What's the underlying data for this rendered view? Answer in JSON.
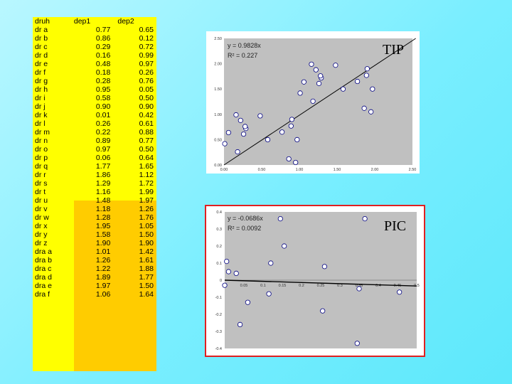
{
  "table": {
    "headers": [
      "druh",
      "dep1",
      "dep2"
    ],
    "rows": [
      [
        "dr a",
        "0.77",
        "0.65"
      ],
      [
        "dr b",
        "0.86",
        "0.12"
      ],
      [
        "dr c",
        "0.29",
        "0.72"
      ],
      [
        "dr d",
        "0.16",
        "0.99"
      ],
      [
        "dr e",
        "0.48",
        "0.97"
      ],
      [
        "dr f",
        "0.18",
        "0.26"
      ],
      [
        "dr g",
        "0.28",
        "0.76"
      ],
      [
        "dr h",
        "0.95",
        "0.05"
      ],
      [
        "dr i",
        "0.58",
        "0.50"
      ],
      [
        "dr j",
        "0.90",
        "0.90"
      ],
      [
        "dr k",
        "0.01",
        "0.42"
      ],
      [
        "dr l",
        "0.26",
        "0.61"
      ],
      [
        "dr m",
        "0.22",
        "0.88"
      ],
      [
        "dr n",
        "0.89",
        "0.77"
      ],
      [
        "dr o",
        "0.97",
        "0.50"
      ],
      [
        "dr p",
        "0.06",
        "0.64"
      ],
      [
        "dr q",
        "1.77",
        "1.65"
      ],
      [
        "dr r",
        "1.86",
        "1.12"
      ],
      [
        "dr s",
        "1.29",
        "1.72"
      ],
      [
        "dr t",
        "1.16",
        "1.99"
      ],
      [
        "dr u",
        "1.48",
        "1.97"
      ],
      [
        "dr v",
        "1.18",
        "1.26"
      ],
      [
        "dr w",
        "1.28",
        "1.76"
      ],
      [
        "dr x",
        "1.95",
        "1.05"
      ],
      [
        "dr y",
        "1.58",
        "1.50"
      ],
      [
        "dr z",
        "1.90",
        "1.90"
      ],
      [
        "dra a",
        "1.01",
        "1.42"
      ],
      [
        "dra b",
        "1.26",
        "1.61"
      ],
      [
        "dra c",
        "1.22",
        "1.88"
      ],
      [
        "dra d",
        "1.89",
        "1.77"
      ],
      [
        "dra e",
        "1.97",
        "1.50"
      ],
      [
        "dra f",
        "1.06",
        "1.64"
      ]
    ],
    "colors": {
      "yellow": "#ffff00",
      "orange": "#ffcc00"
    }
  },
  "chart_data": [
    {
      "type": "scatter",
      "label": "TIP",
      "equation": "y = 0.9828x",
      "r2": "R² = 0.227",
      "xlim": [
        0,
        2.5
      ],
      "ylim": [
        0,
        2.5
      ],
      "x_ticks": [
        "0.00",
        "0.50",
        "1.00",
        "1.50",
        "2.00",
        "2.50"
      ],
      "y_ticks": [
        "0.00",
        "0.50",
        "1.00",
        "1.50",
        "2.00",
        "2.50"
      ],
      "trend_slope": 0.9828,
      "points": [
        [
          0.77,
          0.65
        ],
        [
          0.86,
          0.12
        ],
        [
          0.29,
          0.72
        ],
        [
          0.16,
          0.99
        ],
        [
          0.48,
          0.97
        ],
        [
          0.18,
          0.26
        ],
        [
          0.28,
          0.76
        ],
        [
          0.95,
          0.05
        ],
        [
          0.58,
          0.5
        ],
        [
          0.9,
          0.9
        ],
        [
          0.01,
          0.42
        ],
        [
          0.26,
          0.61
        ],
        [
          0.22,
          0.88
        ],
        [
          0.89,
          0.77
        ],
        [
          0.97,
          0.5
        ],
        [
          0.06,
          0.64
        ],
        [
          1.77,
          1.65
        ],
        [
          1.86,
          1.12
        ],
        [
          1.29,
          1.72
        ],
        [
          1.16,
          1.99
        ],
        [
          1.48,
          1.97
        ],
        [
          1.18,
          1.26
        ],
        [
          1.28,
          1.76
        ],
        [
          1.95,
          1.05
        ],
        [
          1.58,
          1.5
        ],
        [
          1.9,
          1.9
        ],
        [
          1.01,
          1.42
        ],
        [
          1.26,
          1.61
        ],
        [
          1.22,
          1.88
        ],
        [
          1.89,
          1.77
        ],
        [
          1.97,
          1.5
        ],
        [
          1.06,
          1.64
        ]
      ]
    },
    {
      "type": "scatter",
      "label": "PIC",
      "equation": "y = -0.0686x",
      "r2": "R² = 0.0092",
      "xlim": [
        0,
        0.5
      ],
      "ylim": [
        -0.4,
        0.4
      ],
      "x_ticks": [
        "0.05",
        "0.1",
        "0.15",
        "0.2",
        "0.25",
        "0.3",
        "0.35",
        "0.4",
        "0.45",
        "0.5"
      ],
      "y_ticks": [
        "0.4",
        "0.3",
        "0.2",
        "0.1",
        "0",
        "-0.1",
        "-0.2",
        "-0.3",
        "-0.4"
      ],
      "trend_slope": -0.0686,
      "points": [
        [
          0.0,
          -0.03
        ],
        [
          0.005,
          0.11
        ],
        [
          0.01,
          0.05
        ],
        [
          0.03,
          0.04
        ],
        [
          0.04,
          -0.26
        ],
        [
          0.06,
          -0.13
        ],
        [
          0.115,
          -0.08
        ],
        [
          0.12,
          0.1
        ],
        [
          0.145,
          0.36
        ],
        [
          0.155,
          0.2
        ],
        [
          0.255,
          -0.18
        ],
        [
          0.26,
          0.08
        ],
        [
          0.345,
          -0.37
        ],
        [
          0.35,
          -0.05
        ],
        [
          0.365,
          0.36
        ],
        [
          0.455,
          -0.07
        ]
      ]
    }
  ]
}
